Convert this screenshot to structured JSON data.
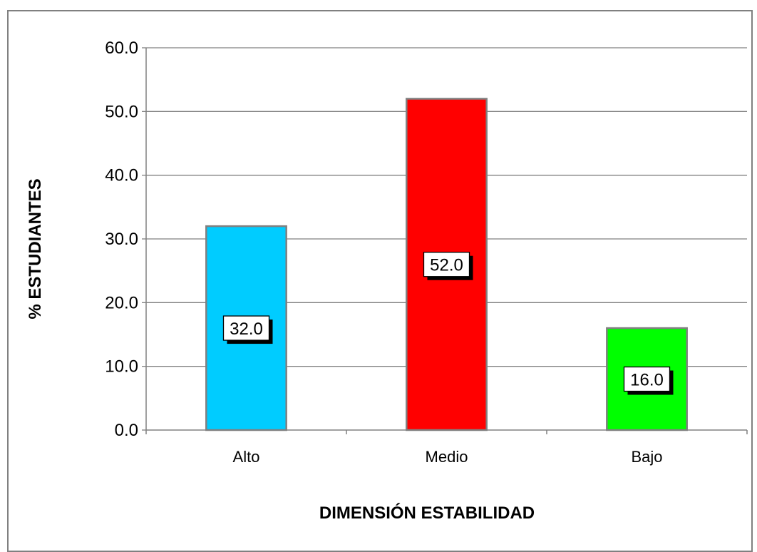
{
  "chart_data": {
    "type": "bar",
    "categories": [
      "Alto",
      "Medio",
      "Bajo"
    ],
    "values": [
      32.0,
      52.0,
      16.0
    ],
    "data_labels": [
      "32.0",
      "52.0",
      "16.0"
    ],
    "colors": [
      "#00CCFF",
      "#FF0000",
      "#00FF00"
    ],
    "ylabel": "% ESTUDIANTES",
    "xlabel": "DIMENSIÓN ESTABILIDAD",
    "ylim": [
      0,
      60
    ],
    "yticks": [
      "0.0",
      "10.0",
      "20.0",
      "30.0",
      "40.0",
      "50.0",
      "60.0"
    ],
    "grid": true,
    "legend": "none"
  }
}
